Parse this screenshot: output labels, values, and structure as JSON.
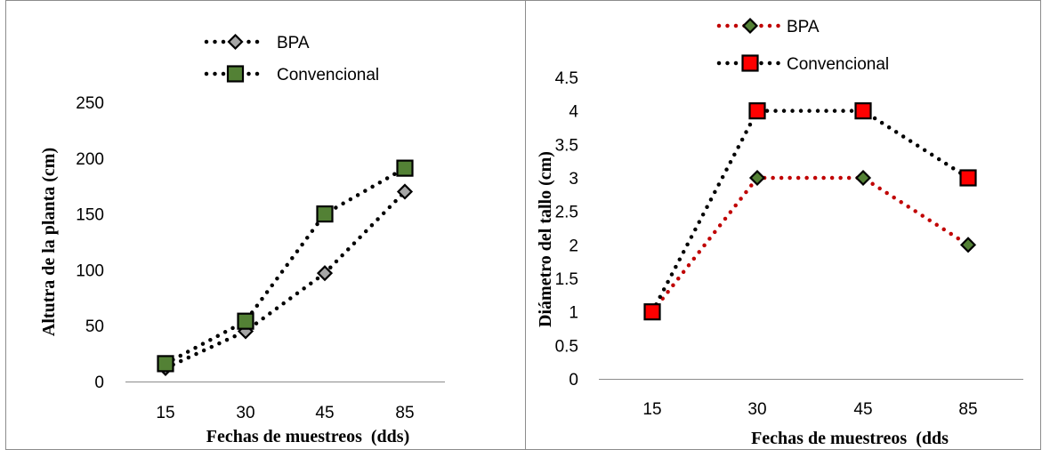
{
  "chart_data": [
    {
      "type": "line",
      "categories": [
        "15",
        "30",
        "45",
        "85"
      ],
      "series": [
        {
          "name": "BPA",
          "values": [
            12,
            45,
            97,
            170
          ],
          "line_color": "#000000",
          "marker": "diamond",
          "marker_fill": "#a6a6a6"
        },
        {
          "name": "Convencional",
          "values": [
            16,
            54,
            150,
            191
          ],
          "line_color": "#000000",
          "marker": "square",
          "marker_fill": "#538135"
        }
      ],
      "xlabel": "Fechas de muestreos  (dds)",
      "ylabel": "Altutra de la planta (cm)",
      "ylim": [
        0,
        250
      ],
      "yticks": [
        "0",
        "50",
        "100",
        "150",
        "200",
        "250"
      ],
      "line_style": "dotted",
      "grid": false,
      "legend": "top"
    },
    {
      "type": "line",
      "categories": [
        "15",
        "30",
        "45",
        "85"
      ],
      "series": [
        {
          "name": "BPA",
          "values": [
            1,
            3,
            3,
            2
          ],
          "line_color": "#c00000",
          "marker": "diamond",
          "marker_fill": "#538135"
        },
        {
          "name": "Convencional",
          "values": [
            1,
            4,
            4,
            3
          ],
          "line_color": "#000000",
          "marker": "square",
          "marker_fill": "#ff0000"
        }
      ],
      "xlabel": "Fechas de muestreos  (dds",
      "ylabel": "Diámetro del tallo (cm)",
      "ylim": [
        0,
        4.5
      ],
      "yticks": [
        "0",
        "0.5",
        "1",
        "1.5",
        "2",
        "2.5",
        "3",
        "3.5",
        "4",
        "4.5"
      ],
      "line_style": "dotted",
      "grid": false,
      "legend": "top"
    }
  ]
}
